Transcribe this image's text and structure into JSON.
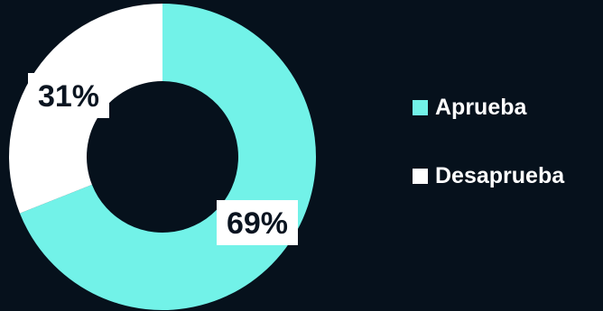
{
  "chart_data": {
    "type": "pie",
    "variant": "donut",
    "title": "",
    "categories": [
      "Aprueba",
      "Desaprueba"
    ],
    "values": [
      69,
      31
    ],
    "unit": "%",
    "data_labels": [
      "69%",
      "31%"
    ],
    "colors": [
      "#72f2e8",
      "#ffffff"
    ],
    "legend": {
      "position": "right",
      "entries": [
        "Aprueba",
        "Desaprueba"
      ]
    },
    "background": "#06111c"
  }
}
